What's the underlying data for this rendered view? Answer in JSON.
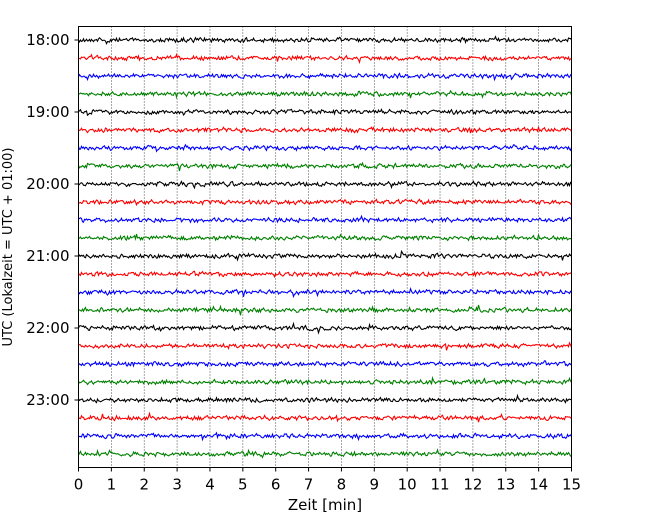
{
  "chart_data": {
    "type": "line",
    "chart_kind": "helicorder (seismogram drum plot)",
    "xlabel": "Zeit  [min]",
    "ylabel": "UTC (Lokalzeit = UTC + 01:00)",
    "xlim": [
      0,
      15
    ],
    "x_ticks": [
      "0",
      "1",
      "2",
      "3",
      "4",
      "5",
      "6",
      "7",
      "8",
      "9",
      "10",
      "11",
      "12",
      "13",
      "14",
      "15"
    ],
    "y_tick_labels": [
      "18:00",
      "19:00",
      "20:00",
      "21:00",
      "22:00",
      "23:00"
    ],
    "trace_interval_minutes": 15,
    "trace_count": 24,
    "trace_start_times": [
      "18:00",
      "18:15",
      "18:30",
      "18:45",
      "19:00",
      "19:15",
      "19:30",
      "19:45",
      "20:00",
      "20:15",
      "20:30",
      "20:45",
      "21:00",
      "21:15",
      "21:30",
      "21:45",
      "22:00",
      "22:15",
      "22:30",
      "22:45",
      "23:00",
      "23:15",
      "23:30",
      "23:45"
    ],
    "trace_color_cycle": [
      "#000000",
      "#ff0000",
      "#0000ff",
      "#008000"
    ],
    "grid": "vertical dotted lines at each minute",
    "legend": "none"
  }
}
